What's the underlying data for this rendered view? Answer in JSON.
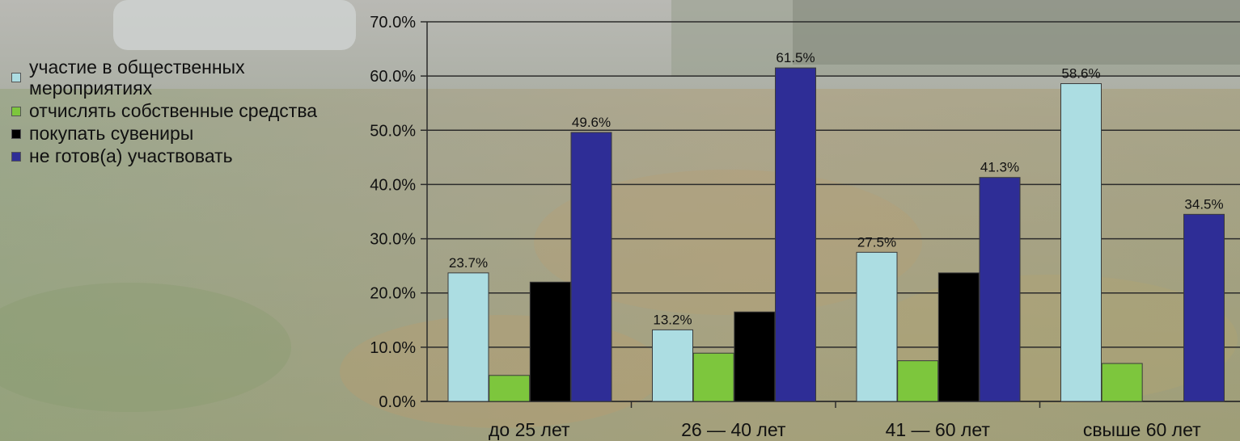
{
  "chart_data": {
    "type": "bar",
    "categories": [
      "до 25 лет",
      "26 — 40 лет",
      "41 — 60 лет",
      "свыше 60 лет"
    ],
    "series": [
      {
        "name": "участие в общественных мероприятиях",
        "color": "#acdde2",
        "values": [
          23.7,
          13.2,
          27.5,
          58.6
        ],
        "labels": [
          "23.7%",
          "13.2%",
          "27.5%",
          "58.6%"
        ]
      },
      {
        "name": "отчислять собственные средства",
        "color": "#7dc63d",
        "values": [
          4.8,
          8.9,
          7.5,
          7.0
        ],
        "labels": [
          null,
          null,
          null,
          null
        ]
      },
      {
        "name": "покупать сувениры",
        "color": "#000000",
        "values": [
          22.0,
          16.5,
          23.7,
          null
        ],
        "labels": [
          null,
          null,
          null,
          null
        ]
      },
      {
        "name": "не готов(а) участвовать",
        "color": "#2e2d96",
        "values": [
          49.6,
          61.5,
          41.3,
          34.5
        ],
        "labels": [
          "49.6%",
          "61.5%",
          "41.3%",
          "34.5%"
        ]
      }
    ],
    "ylim": [
      0,
      70
    ],
    "yticks": [
      "0.0%",
      "10.0%",
      "20.0%",
      "30.0%",
      "40.0%",
      "50.0%",
      "60.0%",
      "70.0%"
    ],
    "grid": true,
    "legend": "left"
  }
}
